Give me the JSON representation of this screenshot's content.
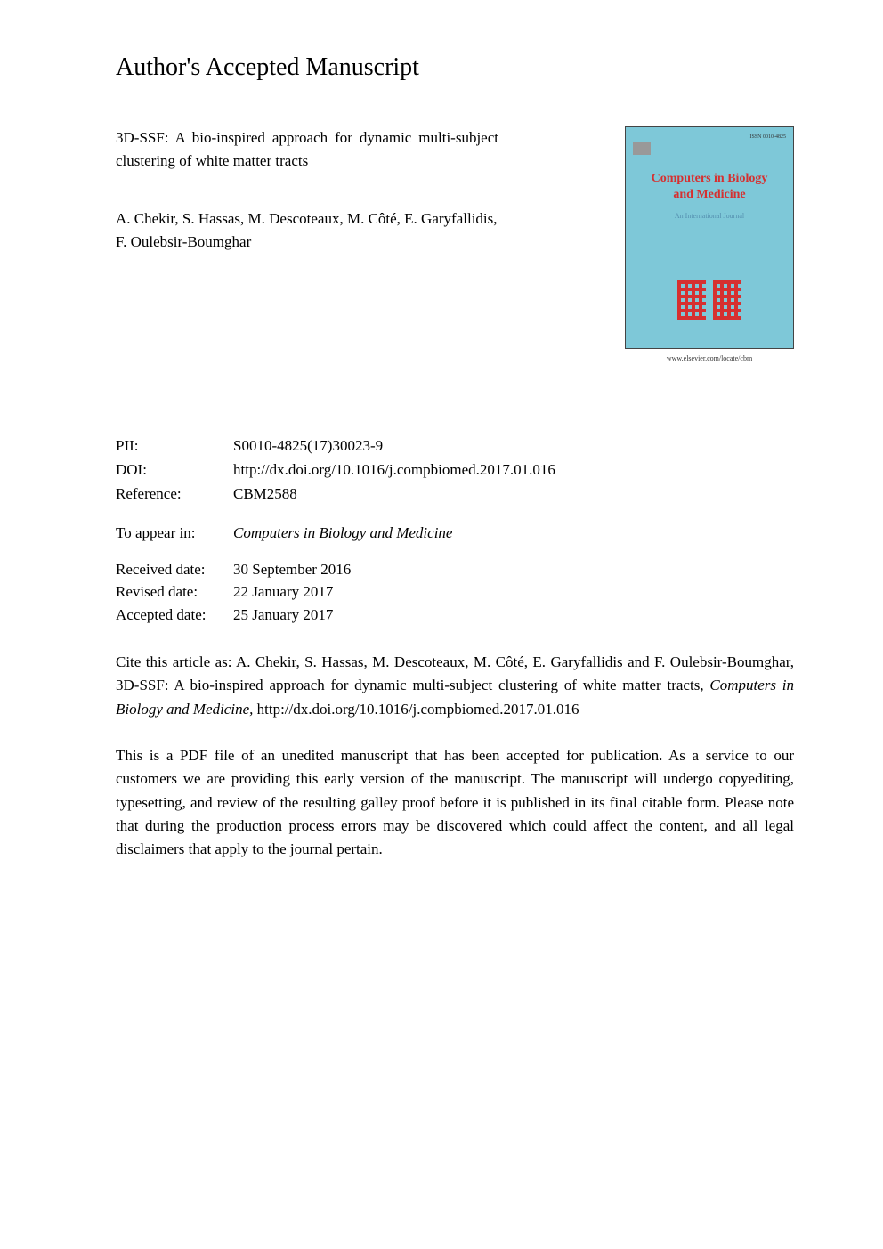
{
  "header": {
    "title": "Author's Accepted Manuscript"
  },
  "article": {
    "title": "3D-SSF: A bio-inspired approach for dynamic multi-subject clustering of white matter tracts",
    "authors": "A. Chekir, S. Hassas, M. Descoteaux, M. Côté, E. Garyfallidis, F. Oulebsir-Boumghar"
  },
  "cover": {
    "issn": "ISSN 0010-4825",
    "journal_name_line1": "Computers in Biology",
    "journal_name_line2": "and Medicine",
    "subtitle": "An International Journal",
    "url": "www.elsevier.com/locate/cbm"
  },
  "metadata": {
    "pii_label": "PII:",
    "pii_value": "S0010-4825(17)30023-9",
    "doi_label": "DOI:",
    "doi_value": "http://dx.doi.org/10.1016/j.compbiomed.2017.01.016",
    "reference_label": "Reference:",
    "reference_value": "CBM2588"
  },
  "appear_in": {
    "label": "To appear in:",
    "value": "Computers in Biology and Medicine"
  },
  "dates": {
    "received_label": "Received date:",
    "received_value": "30 September 2016",
    "revised_label": "Revised date:",
    "revised_value": "22 January 2017",
    "accepted_label": "Accepted date:",
    "accepted_value": "25 January 2017"
  },
  "citation": {
    "prefix": "Cite this article as: A. Chekir, S. Hassas, M. Descoteaux, M. Côté, E. Garyfallidis and F. Oulebsir-Boumghar, 3D-SSF: A bio-inspired approach for dynamic multi-subject clustering of white matter tracts, ",
    "journal": "Computers in Biology and Medicine,",
    "suffix": " http://dx.doi.org/10.1016/j.compbiomed.2017.01.016"
  },
  "disclaimer": {
    "text": "This is a PDF file of an unedited manuscript that has been accepted for publication. As a service to our customers we are providing this early version of the manuscript. The manuscript will undergo copyediting, typesetting, and review of the resulting galley proof before it is published in its final citable form. Please note that during the production process errors may be discovered which could affect the content, and all legal disclaimers that apply to the journal pertain."
  },
  "colors": {
    "cover_bg": "#7ec8d8",
    "cover_title": "#d63030",
    "cover_subtitle": "#5590b0",
    "text": "#000000",
    "background": "#ffffff"
  },
  "typography": {
    "header_fontsize": 28,
    "body_fontsize": 17,
    "font_family": "Georgia, Times New Roman, serif"
  }
}
